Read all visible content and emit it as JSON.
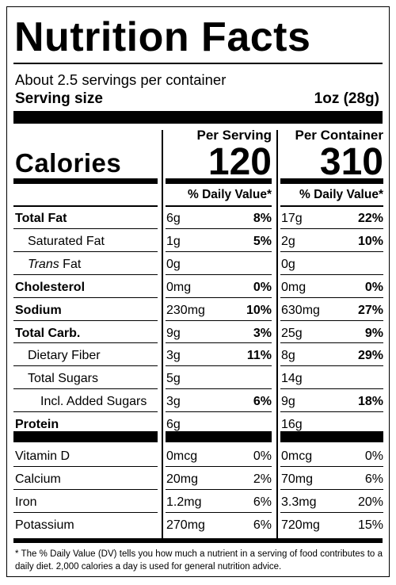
{
  "title": "Nutrition Facts",
  "servings_per_container": "About 2.5 servings per container",
  "serving_size_label": "Serving size",
  "serving_size_value": "1oz (28g)",
  "column_headers": {
    "per_serving": "Per Serving",
    "per_container": "Per Container"
  },
  "calories": {
    "label": "Calories",
    "per_serving": "120",
    "per_container": "310"
  },
  "daily_value_header": "% Daily Value*",
  "nutrients": [
    {
      "label": "Total Fat",
      "bold": true,
      "indent": 0,
      "s_amt": "6g",
      "s_pct": "8%",
      "c_amt": "17g",
      "c_pct": "22%"
    },
    {
      "label": "Saturated Fat",
      "bold": false,
      "indent": 1,
      "s_amt": "1g",
      "s_pct": "5%",
      "c_amt": "2g",
      "c_pct": "10%"
    },
    {
      "label": "Fat",
      "label_prefix_italic": "Trans",
      "bold": false,
      "indent": 1,
      "s_amt": "0g",
      "s_pct": "",
      "c_amt": "0g",
      "c_pct": ""
    },
    {
      "label": "Cholesterol",
      "bold": true,
      "indent": 0,
      "s_amt": "0mg",
      "s_pct": "0%",
      "c_amt": "0mg",
      "c_pct": "0%"
    },
    {
      "label": "Sodium",
      "bold": true,
      "indent": 0,
      "s_amt": "230mg",
      "s_pct": "10%",
      "c_amt": "630mg",
      "c_pct": "27%"
    },
    {
      "label": "Total Carb.",
      "bold": true,
      "indent": 0,
      "s_amt": "9g",
      "s_pct": "3%",
      "c_amt": "25g",
      "c_pct": "9%"
    },
    {
      "label": "Dietary Fiber",
      "bold": false,
      "indent": 1,
      "s_amt": "3g",
      "s_pct": "11%",
      "c_amt": "8g",
      "c_pct": "29%"
    },
    {
      "label": "Total Sugars",
      "bold": false,
      "indent": 1,
      "s_amt": "5g",
      "s_pct": "",
      "c_amt": "14g",
      "c_pct": ""
    },
    {
      "label": "Incl. Added Sugars",
      "bold": false,
      "indent": 2,
      "s_amt": "3g",
      "s_pct": "6%",
      "c_amt": "9g",
      "c_pct": "18%"
    },
    {
      "label": "Protein",
      "bold": true,
      "indent": 0,
      "s_amt": "6g",
      "s_pct": "",
      "c_amt": "16g",
      "c_pct": ""
    }
  ],
  "vitamins": [
    {
      "label": "Vitamin D",
      "s_amt": "0mcg",
      "s_pct": "0%",
      "c_amt": "0mcg",
      "c_pct": "0%"
    },
    {
      "label": "Calcium",
      "s_amt": "20mg",
      "s_pct": "2%",
      "c_amt": "70mg",
      "c_pct": "6%"
    },
    {
      "label": "Iron",
      "s_amt": "1.2mg",
      "s_pct": "6%",
      "c_amt": "3.3mg",
      "c_pct": "20%"
    },
    {
      "label": "Potassium",
      "s_amt": "270mg",
      "s_pct": "6%",
      "c_amt": "720mg",
      "c_pct": "15%"
    }
  ],
  "footnote": "* The % Daily Value (DV) tells you how much a nutrient in a serving of food contributes to a daily diet. 2,000 calories a day is used for general nutrition advice."
}
